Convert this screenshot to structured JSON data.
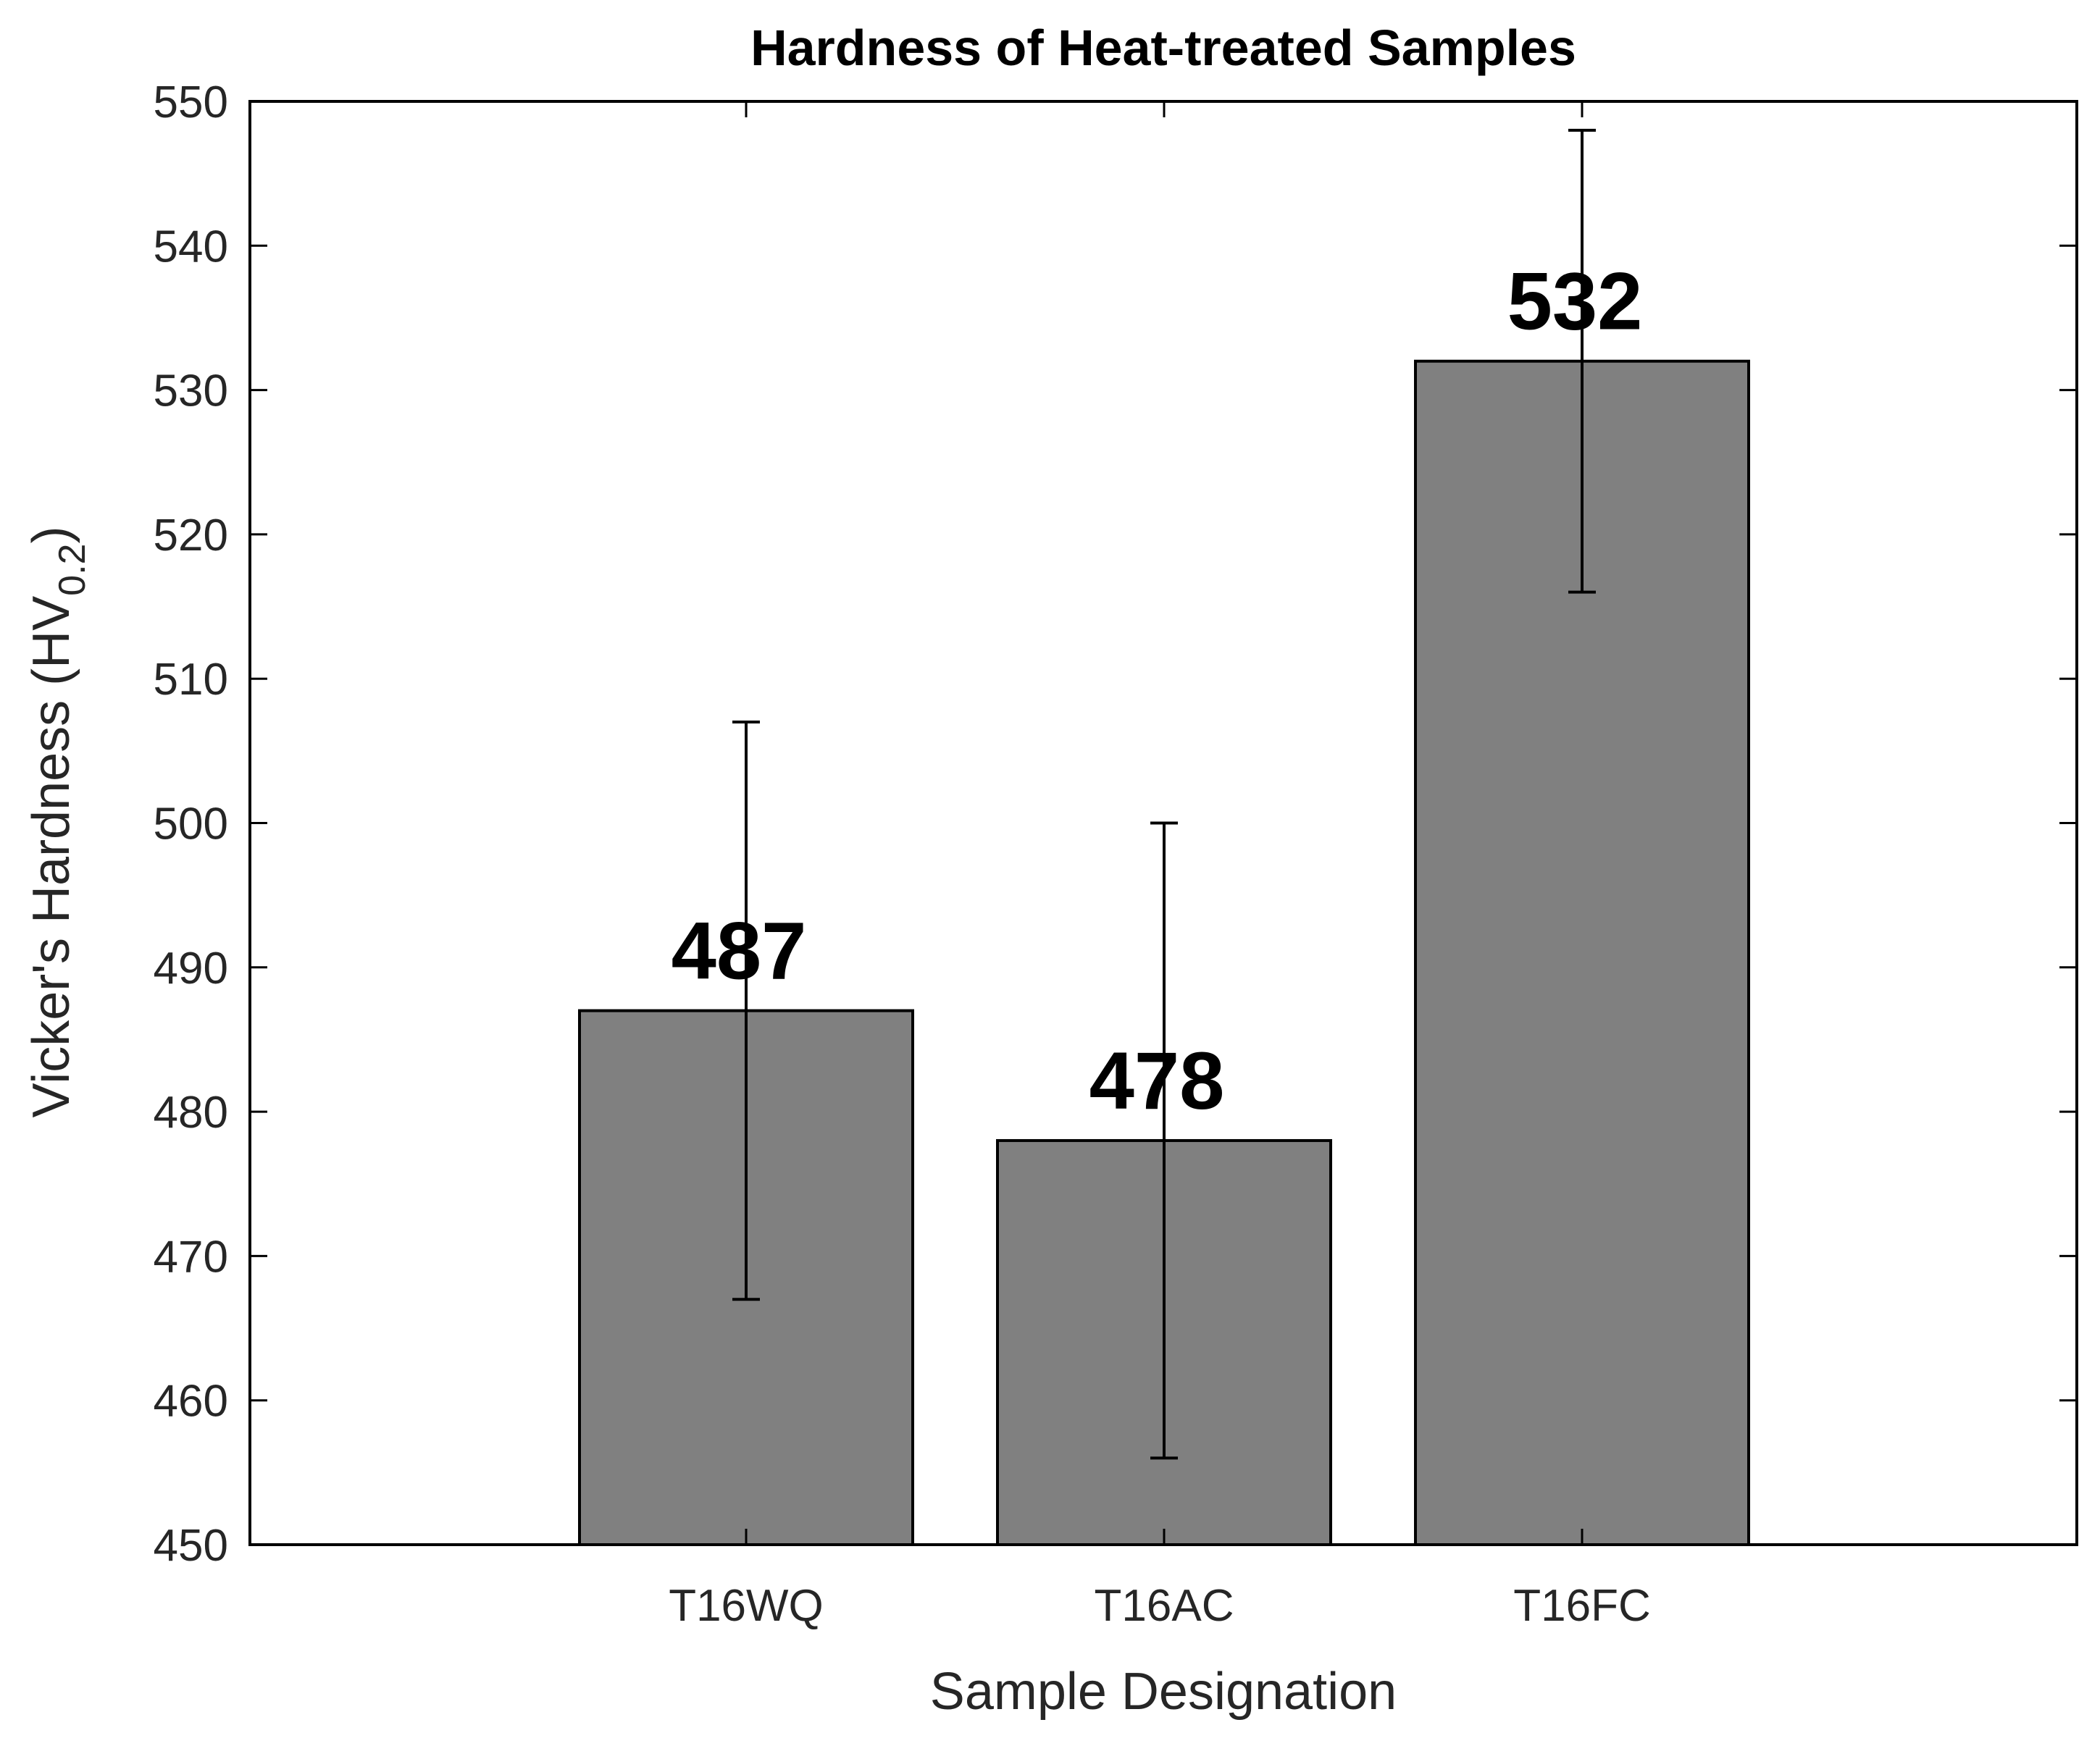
{
  "chart_data": {
    "type": "bar",
    "title": "Hardness of Heat-treated Samples",
    "xlabel": "Sample Designation",
    "ylabel": {
      "main": "Vicker's Hardness (HV",
      "subscript": "0.2",
      "close": ")"
    },
    "categories": [
      "T16WQ",
      "T16AC",
      "T16FC"
    ],
    "values": [
      487,
      478,
      532
    ],
    "value_labels": [
      "487",
      "478",
      "532"
    ],
    "error_bars": [
      {
        "low": 467,
        "high": 507
      },
      {
        "low": 456,
        "high": 500
      },
      {
        "low": 516,
        "high": 548
      }
    ],
    "ylim": [
      450,
      550
    ],
    "yticks": [
      450,
      460,
      470,
      480,
      490,
      500,
      510,
      520,
      530,
      540,
      550
    ],
    "ytick_labels": [
      "450",
      "460",
      "470",
      "480",
      "490",
      "500",
      "510",
      "520",
      "530",
      "540",
      "550"
    ],
    "grid": false,
    "bar_color": "#808080",
    "edge_color": "#000000"
  }
}
